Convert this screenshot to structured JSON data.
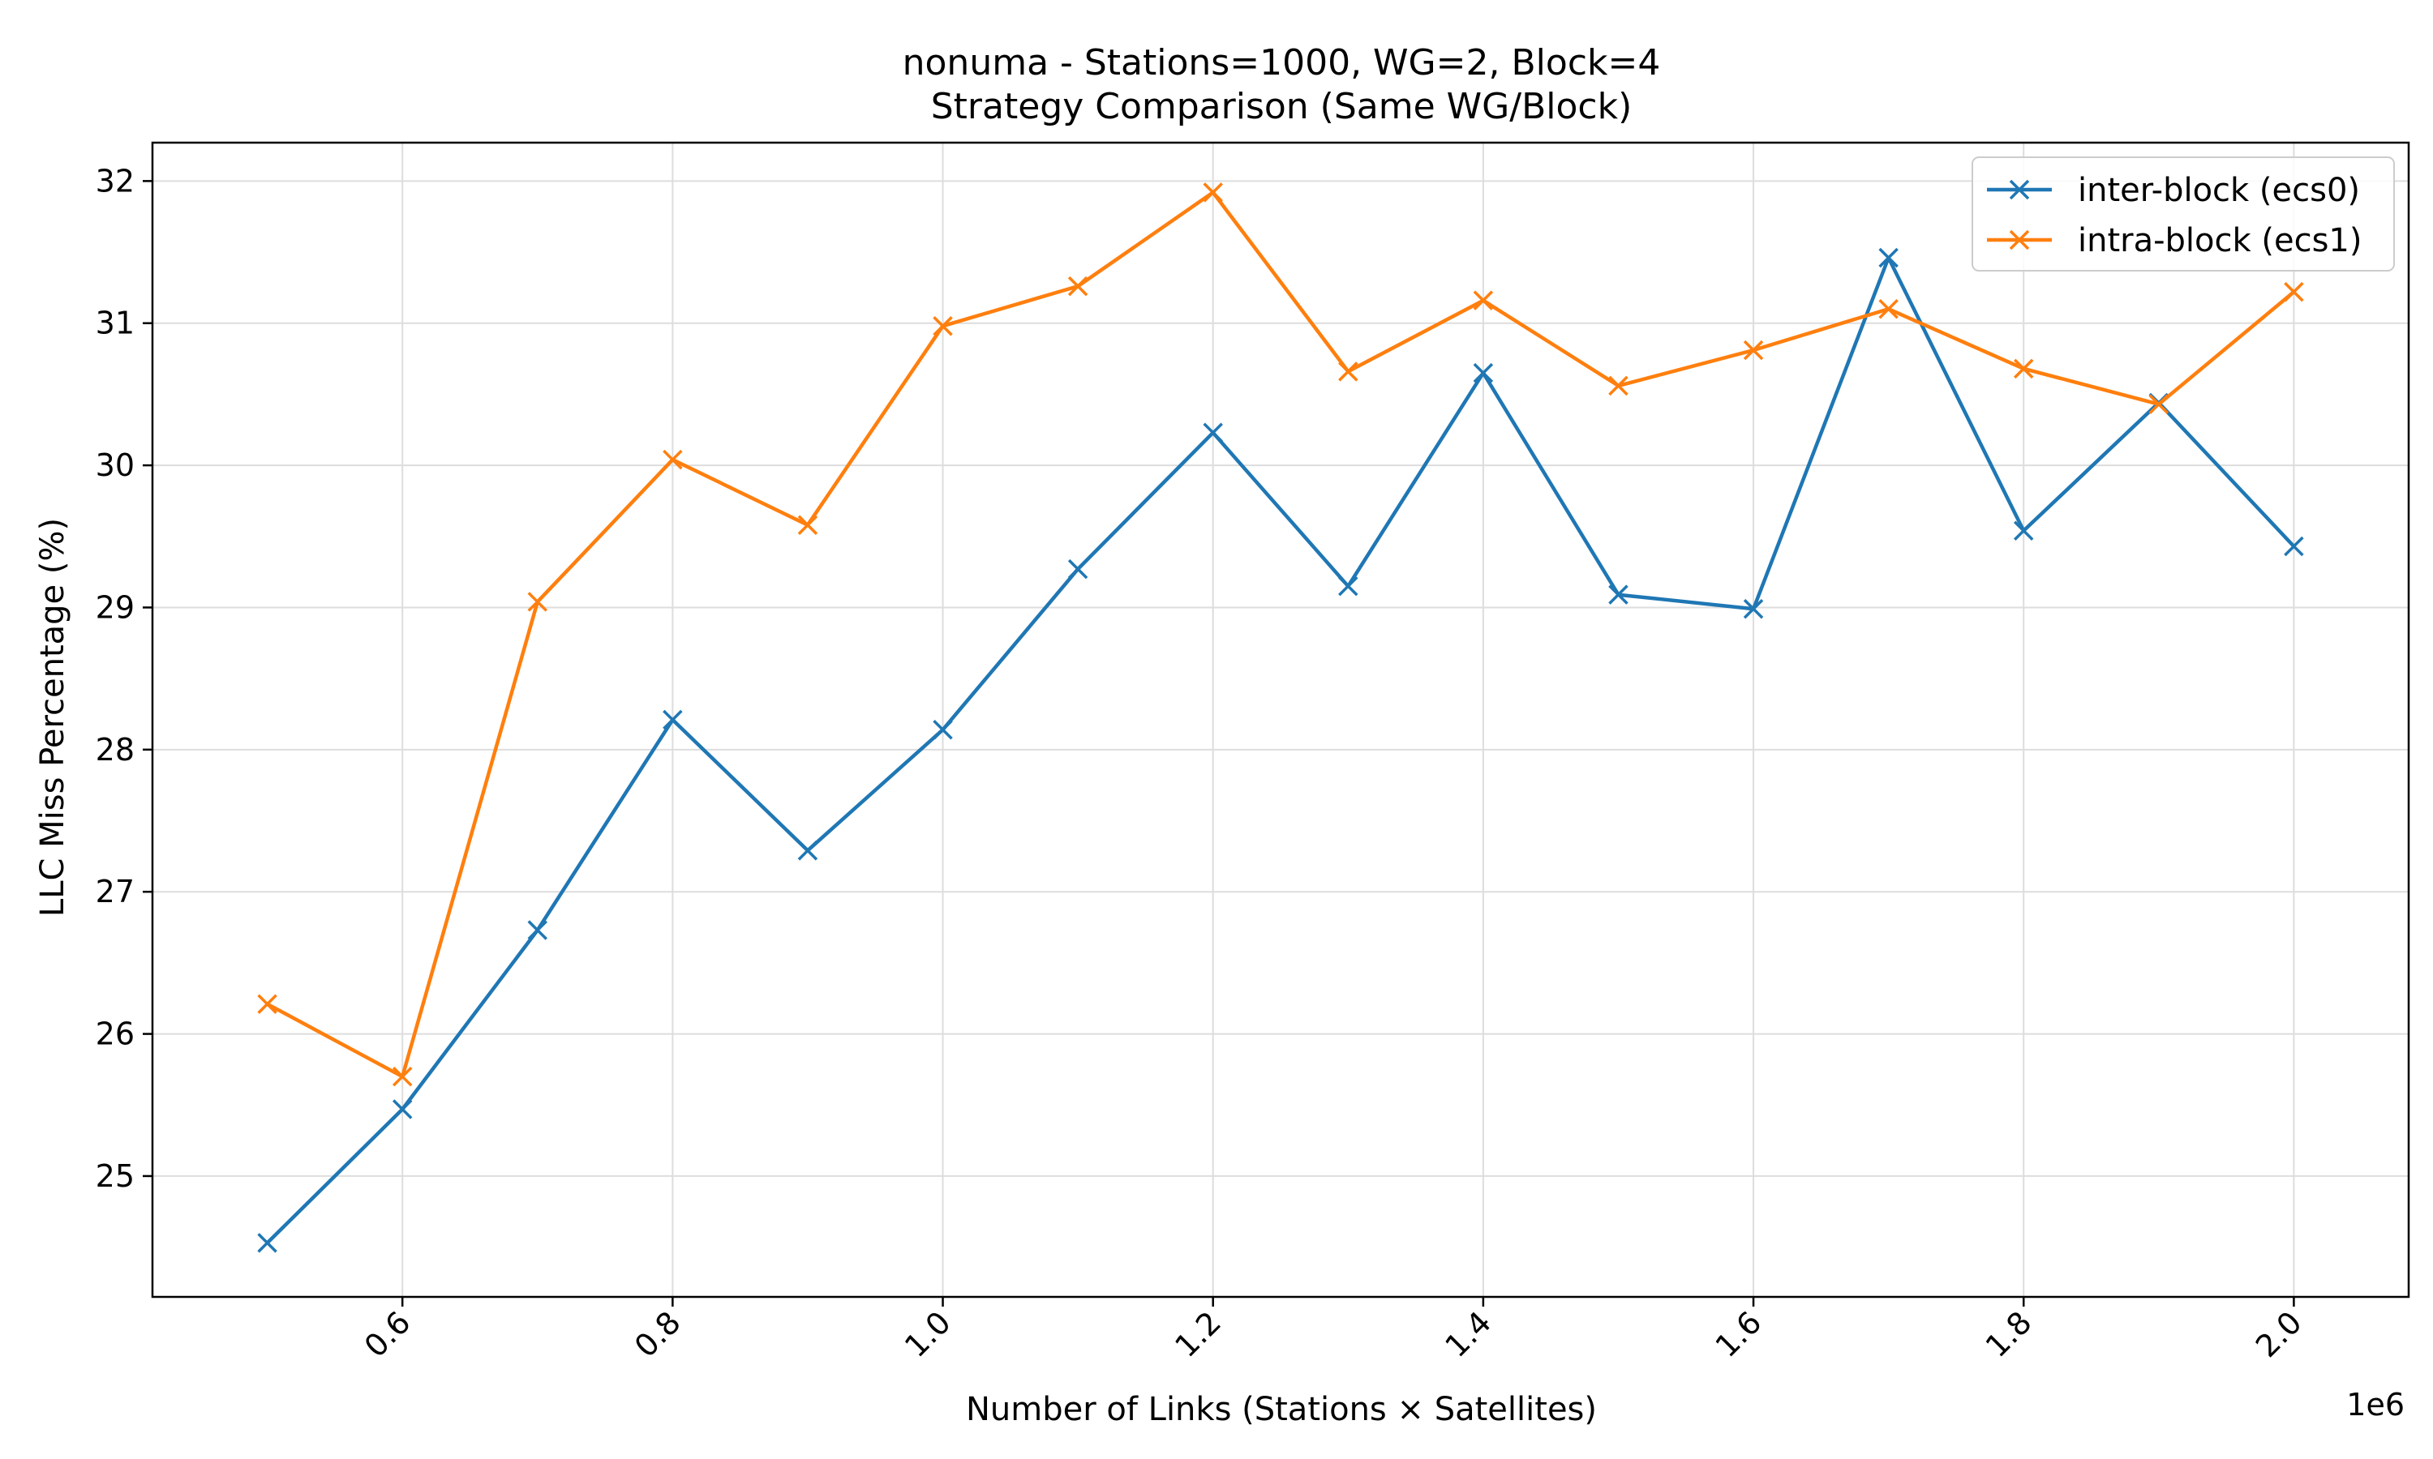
{
  "chart_data": {
    "type": "line",
    "title": "nonuma - Stations=1000, WG=2, Block=4",
    "subtitle": "Strategy Comparison (Same WG/Block)",
    "xlabel": "Number of Links (Stations × Satellites)",
    "ylabel": "LLC Miss Percentage (%)",
    "x_offset_text": "1e6",
    "x_scale": 1000000,
    "x": [
      500000,
      600000,
      700000,
      800000,
      900000,
      1000000,
      1100000,
      1200000,
      1300000,
      1400000,
      1500000,
      1600000,
      1700000,
      1800000,
      1900000,
      2000000
    ],
    "xlim": [
      415000,
      2085000
    ],
    "ylim": [
      24.15,
      32.27
    ],
    "x_ticks": [
      600000,
      800000,
      1000000,
      1200000,
      1400000,
      1600000,
      1800000,
      2000000
    ],
    "x_tick_labels": [
      "0.6",
      "0.8",
      "1.0",
      "1.2",
      "1.4",
      "1.6",
      "1.8",
      "2.0"
    ],
    "y_ticks": [
      25,
      26,
      27,
      28,
      29,
      30,
      31,
      32
    ],
    "y_tick_labels": [
      "25",
      "26",
      "27",
      "28",
      "29",
      "30",
      "31",
      "32"
    ],
    "grid": true,
    "legend_position": "top-right",
    "marker": "x",
    "series": [
      {
        "name": "inter-block (ecs0)",
        "color": "#1f77b4",
        "values": [
          24.53,
          25.47,
          26.73,
          28.21,
          27.29,
          28.14,
          29.27,
          30.23,
          29.15,
          30.65,
          29.09,
          28.99,
          31.46,
          29.54,
          30.44,
          29.43
        ]
      },
      {
        "name": "intra-block (ecs1)",
        "color": "#ff7f0e",
        "values": [
          26.21,
          25.7,
          29.04,
          30.04,
          29.58,
          30.98,
          31.26,
          31.92,
          30.66,
          31.16,
          30.56,
          30.81,
          31.1,
          30.68,
          30.43,
          31.22
        ]
      }
    ]
  }
}
